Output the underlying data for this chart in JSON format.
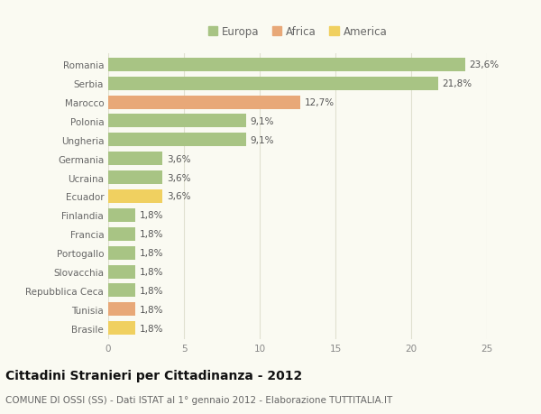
{
  "categories": [
    "Romania",
    "Serbia",
    "Marocco",
    "Polonia",
    "Ungheria",
    "Germania",
    "Ucraina",
    "Ecuador",
    "Finlandia",
    "Francia",
    "Portogallo",
    "Slovacchia",
    "Repubblica Ceca",
    "Tunisia",
    "Brasile"
  ],
  "values": [
    23.6,
    21.8,
    12.7,
    9.1,
    9.1,
    3.6,
    3.6,
    3.6,
    1.8,
    1.8,
    1.8,
    1.8,
    1.8,
    1.8,
    1.8
  ],
  "labels": [
    "23,6%",
    "21,8%",
    "12,7%",
    "9,1%",
    "9,1%",
    "3,6%",
    "3,6%",
    "3,6%",
    "1,8%",
    "1,8%",
    "1,8%",
    "1,8%",
    "1,8%",
    "1,8%",
    "1,8%"
  ],
  "continents": [
    "Europa",
    "Europa",
    "Africa",
    "Europa",
    "Europa",
    "Europa",
    "Europa",
    "America",
    "Europa",
    "Europa",
    "Europa",
    "Europa",
    "Europa",
    "Africa",
    "America"
  ],
  "colors": {
    "Europa": "#a8c484",
    "Africa": "#e8a878",
    "America": "#f0d060"
  },
  "xlim": [
    0,
    25
  ],
  "xticks": [
    0,
    5,
    10,
    15,
    20,
    25
  ],
  "title": "Cittadini Stranieri per Cittadinanza - 2012",
  "subtitle": "COMUNE DI OSSI (SS) - Dati ISTAT al 1° gennaio 2012 - Elaborazione TUTTITALIA.IT",
  "background_color": "#fafaf2",
  "grid_color": "#e0e0d0",
  "title_fontsize": 10,
  "subtitle_fontsize": 7.5,
  "bar_height": 0.72,
  "label_fontsize": 7.5,
  "ytick_fontsize": 7.5,
  "legend_fontsize": 8.5
}
